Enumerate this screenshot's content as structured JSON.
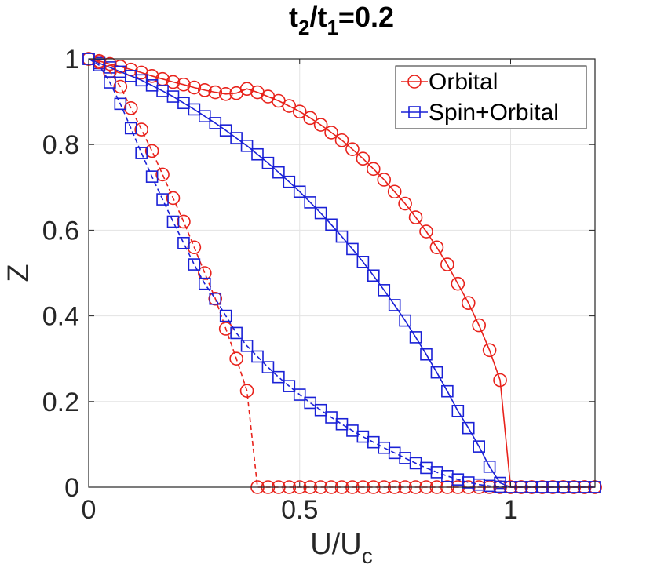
{
  "chart_data": {
    "type": "line",
    "title": {
      "a": "t",
      "a_sub": "2",
      "slash": "/t",
      "b_sub": "1",
      "rest": "=0.2"
    },
    "xlabel": {
      "main": "U/U",
      "sub": "c"
    },
    "ylabel": "Z",
    "xlim": [
      0,
      1.2
    ],
    "ylim": [
      0,
      1
    ],
    "xticks": [
      0,
      0.5,
      1
    ],
    "xtick_labels": [
      "0",
      "0.5",
      "1"
    ],
    "yticks": [
      0,
      0.2,
      0.4,
      0.6,
      0.8,
      1
    ],
    "ytick_labels": [
      "0",
      "0.2",
      "0.4",
      "0.6",
      "0.8",
      "1"
    ],
    "grid": true,
    "legend_position": "top-right",
    "legend": [
      {
        "label": "Orbital",
        "color": "#e8221b",
        "marker": "circle"
      },
      {
        "label": "Spin+Orbital",
        "color": "#1a21d6",
        "marker": "square"
      }
    ],
    "series": [
      {
        "name": "Orbital (solid)",
        "legend_index": 0,
        "color": "#e8221b",
        "marker": "circle",
        "dash": "solid",
        "x": [
          0,
          0.025,
          0.05,
          0.075,
          0.1,
          0.125,
          0.15,
          0.175,
          0.2,
          0.225,
          0.25,
          0.275,
          0.3,
          0.325,
          0.35,
          0.375,
          0.4,
          0.425,
          0.45,
          0.475,
          0.5,
          0.525,
          0.55,
          0.575,
          0.6,
          0.625,
          0.65,
          0.675,
          0.7,
          0.725,
          0.75,
          0.775,
          0.8,
          0.825,
          0.85,
          0.875,
          0.9,
          0.925,
          0.95,
          0.975,
          1.0,
          1.025,
          1.05,
          1.075,
          1.1,
          1.125,
          1.15,
          1.175,
          1.2
        ],
        "y": [
          1.0,
          0.995,
          0.988,
          0.982,
          0.975,
          0.968,
          0.96,
          0.953,
          0.946,
          0.94,
          0.933,
          0.927,
          0.922,
          0.918,
          0.92,
          0.93,
          0.922,
          0.912,
          0.902,
          0.89,
          0.877,
          0.862,
          0.846,
          0.828,
          0.81,
          0.789,
          0.767,
          0.743,
          0.718,
          0.69,
          0.662,
          0.63,
          0.597,
          0.56,
          0.52,
          0.475,
          0.43,
          0.378,
          0.32,
          0.25,
          0.0,
          0.0,
          0.0,
          0.0,
          0.0,
          0.0,
          0.0,
          0.0,
          0.0
        ]
      },
      {
        "name": "Spin+Orbital (solid)",
        "legend_index": 1,
        "color": "#1a21d6",
        "marker": "square",
        "dash": "solid",
        "x": [
          0,
          0.025,
          0.05,
          0.075,
          0.1,
          0.125,
          0.15,
          0.175,
          0.2,
          0.225,
          0.25,
          0.275,
          0.3,
          0.325,
          0.35,
          0.375,
          0.4,
          0.425,
          0.45,
          0.475,
          0.5,
          0.525,
          0.55,
          0.575,
          0.6,
          0.625,
          0.65,
          0.675,
          0.7,
          0.725,
          0.75,
          0.775,
          0.8,
          0.825,
          0.85,
          0.875,
          0.9,
          0.925,
          0.95,
          0.975,
          1.0,
          1.025,
          1.05,
          1.075,
          1.1,
          1.125,
          1.15,
          1.175,
          1.2
        ],
        "y": [
          1.0,
          0.99,
          0.98,
          0.97,
          0.96,
          0.95,
          0.938,
          0.925,
          0.912,
          0.897,
          0.882,
          0.866,
          0.85,
          0.833,
          0.815,
          0.797,
          0.777,
          0.757,
          0.735,
          0.713,
          0.69,
          0.665,
          0.64,
          0.613,
          0.585,
          0.556,
          0.526,
          0.494,
          0.46,
          0.425,
          0.389,
          0.35,
          0.31,
          0.268,
          0.224,
          0.178,
          0.138,
          0.095,
          0.048,
          0.01,
          0.0,
          0.0,
          0.0,
          0.0,
          0.0,
          0.0,
          0.0,
          0.0,
          0.0
        ]
      },
      {
        "name": "Orbital (dashed)",
        "color": "#e8221b",
        "marker": "circle",
        "dash": "dashed",
        "x": [
          0,
          0.025,
          0.05,
          0.075,
          0.1,
          0.125,
          0.15,
          0.175,
          0.2,
          0.225,
          0.25,
          0.275,
          0.3,
          0.325,
          0.35,
          0.375,
          0.4,
          0.425,
          0.45,
          0.475,
          0.5,
          0.525,
          0.55,
          0.575,
          0.6,
          0.625,
          0.65,
          0.675,
          0.7,
          0.725,
          0.75,
          0.775,
          0.8,
          0.825,
          0.85,
          0.875,
          0.9,
          0.925,
          0.95,
          0.975,
          1.0,
          1.025,
          1.05,
          1.075,
          1.1,
          1.125,
          1.15,
          1.175,
          1.2
        ],
        "y": [
          1.0,
          0.992,
          0.97,
          0.935,
          0.885,
          0.835,
          0.785,
          0.73,
          0.675,
          0.62,
          0.56,
          0.5,
          0.44,
          0.37,
          0.3,
          0.225,
          0.0,
          0.0,
          0.0,
          0.0,
          0.0,
          0.0,
          0.0,
          0.0,
          0.0,
          0.0,
          0.0,
          0.0,
          0.0,
          0.0,
          0.0,
          0.0,
          0.0,
          0.0,
          0.0,
          0.0,
          0.0,
          0.0,
          0.0,
          0.0,
          0.0,
          0.0,
          0.0,
          0.0,
          0.0,
          0.0,
          0.0,
          0.0,
          0.0
        ]
      },
      {
        "name": "Spin+Orbital (dashed)",
        "color": "#1a21d6",
        "marker": "square",
        "dash": "dashed",
        "x": [
          0,
          0.025,
          0.05,
          0.075,
          0.1,
          0.125,
          0.15,
          0.175,
          0.2,
          0.225,
          0.25,
          0.275,
          0.3,
          0.325,
          0.35,
          0.375,
          0.4,
          0.425,
          0.45,
          0.475,
          0.5,
          0.525,
          0.55,
          0.575,
          0.6,
          0.625,
          0.65,
          0.675,
          0.7,
          0.725,
          0.75,
          0.775,
          0.8,
          0.825,
          0.85,
          0.875,
          0.9,
          0.925,
          0.95,
          0.975,
          1.0,
          1.025,
          1.05,
          1.075,
          1.1,
          1.125,
          1.15,
          1.175,
          1.2
        ],
        "y": [
          1.0,
          0.985,
          0.945,
          0.895,
          0.838,
          0.78,
          0.725,
          0.672,
          0.62,
          0.57,
          0.52,
          0.475,
          0.44,
          0.4,
          0.36,
          0.33,
          0.305,
          0.28,
          0.257,
          0.236,
          0.216,
          0.197,
          0.18,
          0.163,
          0.147,
          0.132,
          0.118,
          0.105,
          0.092,
          0.08,
          0.068,
          0.056,
          0.045,
          0.035,
          0.026,
          0.018,
          0.011,
          0.006,
          0.003,
          0.001,
          0.0,
          0.0,
          0.0,
          0.0,
          0.0,
          0.0,
          0.0,
          0.0,
          0.0
        ]
      }
    ]
  }
}
